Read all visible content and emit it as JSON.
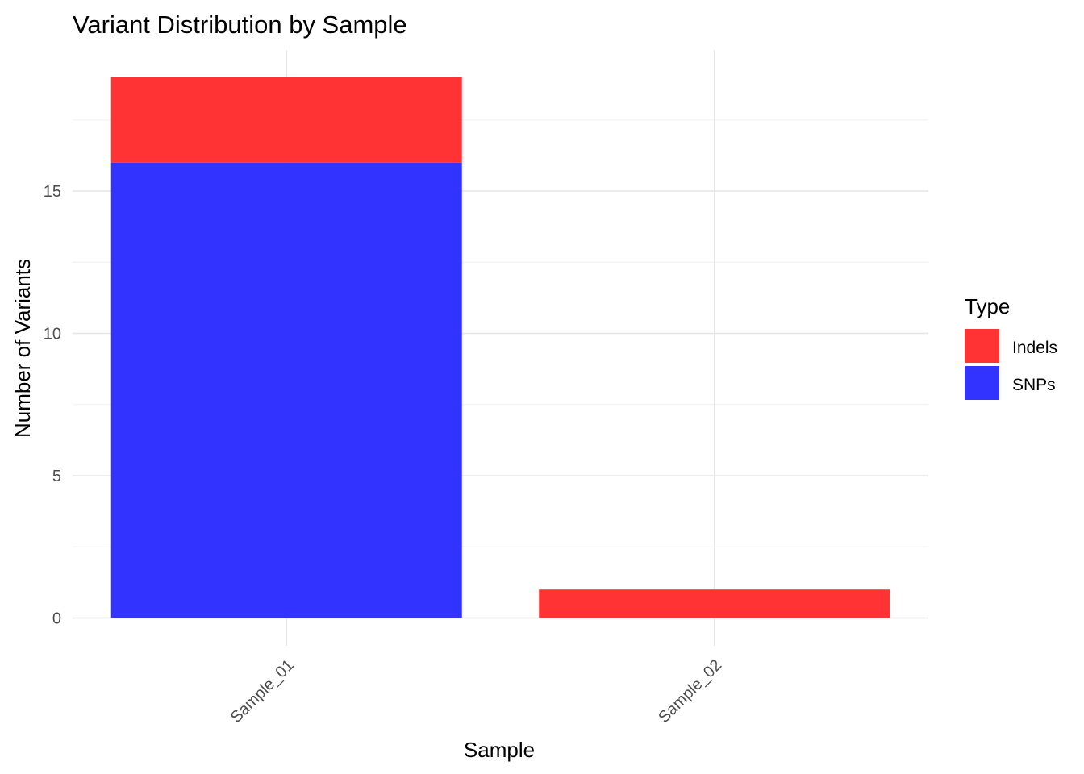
{
  "chart_data": {
    "type": "bar",
    "stacked": true,
    "title": "Variant Distribution by Sample",
    "xlabel": "Sample",
    "ylabel": "Number of Variants",
    "categories": [
      "Sample_01",
      "Sample_02"
    ],
    "series": [
      {
        "name": "SNPs",
        "values": [
          16,
          0
        ],
        "color": "#3333ff"
      },
      {
        "name": "Indels",
        "values": [
          3,
          1
        ],
        "color": "#ff3333"
      }
    ],
    "stack_order_bottom_to_top": [
      "SNPs",
      "Indels"
    ],
    "ylim": [
      0,
      19.95
    ],
    "yticks": [
      0,
      5,
      10,
      15
    ],
    "grid": true,
    "legend": {
      "title": "Type",
      "placement": "right",
      "entries": [
        {
          "label": "Indels",
          "color": "#ff3333"
        },
        {
          "label": "SNPs",
          "color": "#3333ff"
        }
      ]
    }
  }
}
